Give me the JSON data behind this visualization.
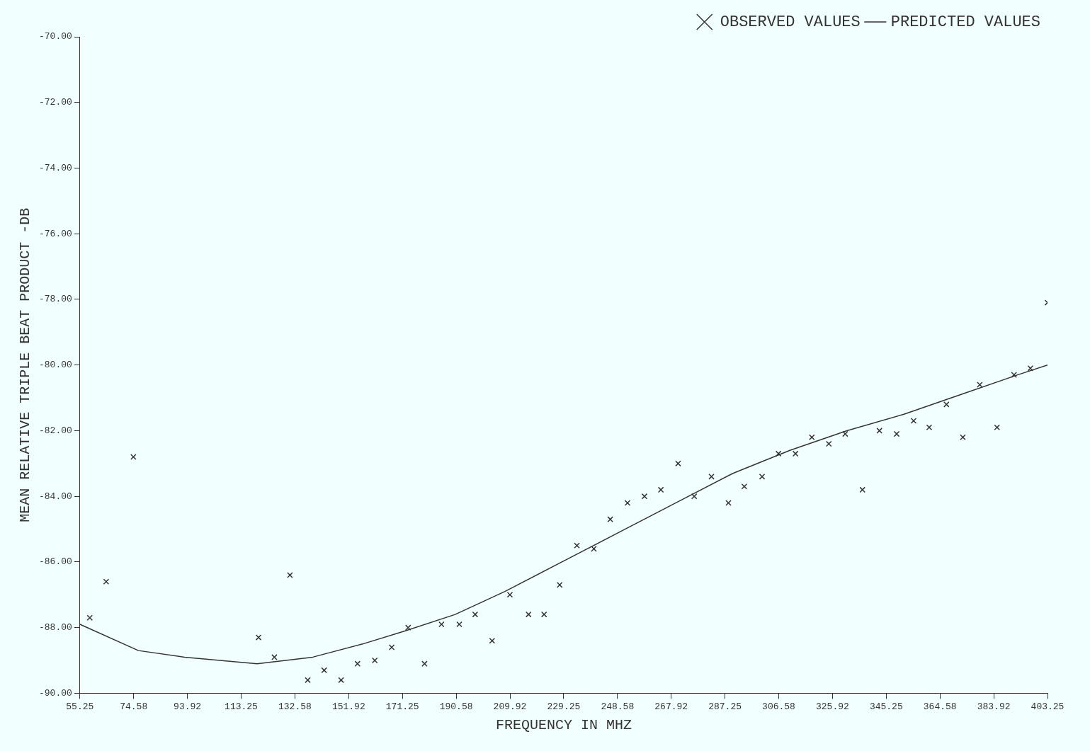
{
  "chart_data": {
    "type": "scatter",
    "xlabel": "FREQUENCY IN MHZ",
    "ylabel": "MEAN RELATIVE TRIPLE BEAT PRODUCT -DB",
    "legend": "top right",
    "xlim": [
      55.25,
      403.25
    ],
    "xticks": [
      55.25,
      74.58,
      93.92,
      113.25,
      132.58,
      151.92,
      171.25,
      190.58,
      209.92,
      229.25,
      248.58,
      267.92,
      287.25,
      306.58,
      325.92,
      345.25,
      364.58,
      383.92,
      403.25
    ],
    "ylim": [
      -90,
      -70
    ],
    "yticks": [
      {
        "value": -90,
        "label": "-90.00"
      },
      {
        "value": -88,
        "label": "-88.00"
      },
      {
        "value": -86,
        "label": "-86.00"
      },
      {
        "value": -84,
        "label": "-84.00"
      },
      {
        "value": -82,
        "label": "-82.00"
      },
      {
        "value": -80,
        "label": "-80.00"
      },
      {
        "value": -78,
        "label": "-78.00"
      },
      {
        "value": -76,
        "label": "-76.00"
      },
      {
        "value": -74,
        "label": "-74.00"
      },
      {
        "value": -72,
        "label": "-72.00"
      },
      {
        "value": -70,
        "label": "-70.00"
      }
    ],
    "series": [
      {
        "name": "OBSERVED VALUES",
        "marker": "cross",
        "color": "#333333",
        "x": [
          58.8,
          64.7,
          74.5,
          119.5,
          125.2,
          130.8,
          137.2,
          143.1,
          149.2,
          155.1,
          161.3,
          167.4,
          173.3,
          179.2,
          185.3,
          191.7,
          197.4,
          203.5,
          209.9,
          216.6,
          222.2,
          227.8,
          234.0,
          240.1,
          246.0,
          252.2,
          258.3,
          264.2,
          270.4,
          276.2,
          282.4,
          288.5,
          294.2,
          300.6,
          306.5,
          312.6,
          318.5,
          324.6,
          330.5,
          336.7,
          342.8,
          349.0,
          355.1,
          360.7,
          366.9,
          372.8,
          378.9,
          385.1,
          391.2,
          397.1,
          403.25
        ],
        "values": [
          -87.7,
          -86.6,
          -82.8,
          -88.3,
          -88.9,
          -86.4,
          -89.6,
          -89.3,
          -89.6,
          -89.1,
          -89.0,
          -88.6,
          -88.0,
          -89.1,
          -87.9,
          -87.9,
          -87.6,
          -88.4,
          -87.0,
          -87.6,
          -87.6,
          -86.7,
          -85.5,
          -85.6,
          -84.7,
          -84.2,
          -84.0,
          -83.8,
          -83.0,
          -84.0,
          -83.4,
          -84.2,
          -83.7,
          -83.4,
          -82.7,
          -82.7,
          -82.2,
          -82.4,
          -82.1,
          -83.8,
          -82.0,
          -82.1,
          -81.7,
          -81.9,
          -81.2,
          -82.2,
          -80.6,
          -81.9,
          -80.3,
          -80.1,
          -78.1
        ]
      },
      {
        "name": "PREDICTED VALUES",
        "type": "line",
        "marker": "none",
        "line_style": "solid",
        "color": "#333333",
        "x": [
          55.25,
          76.3,
          92.9,
          119.0,
          139.0,
          156.9,
          172.3,
          190.2,
          208.1,
          228.6,
          249.1,
          269.6,
          290.1,
          310.6,
          331.1,
          351.6,
          372.0,
          392.5,
          403.25
        ],
        "values": [
          -87.9,
          -88.7,
          -88.9,
          -89.1,
          -88.9,
          -88.5,
          -88.1,
          -87.6,
          -86.9,
          -86.0,
          -85.1,
          -84.2,
          -83.3,
          -82.6,
          -82.0,
          -81.5,
          -80.9,
          -80.3,
          -80.0
        ]
      }
    ]
  }
}
